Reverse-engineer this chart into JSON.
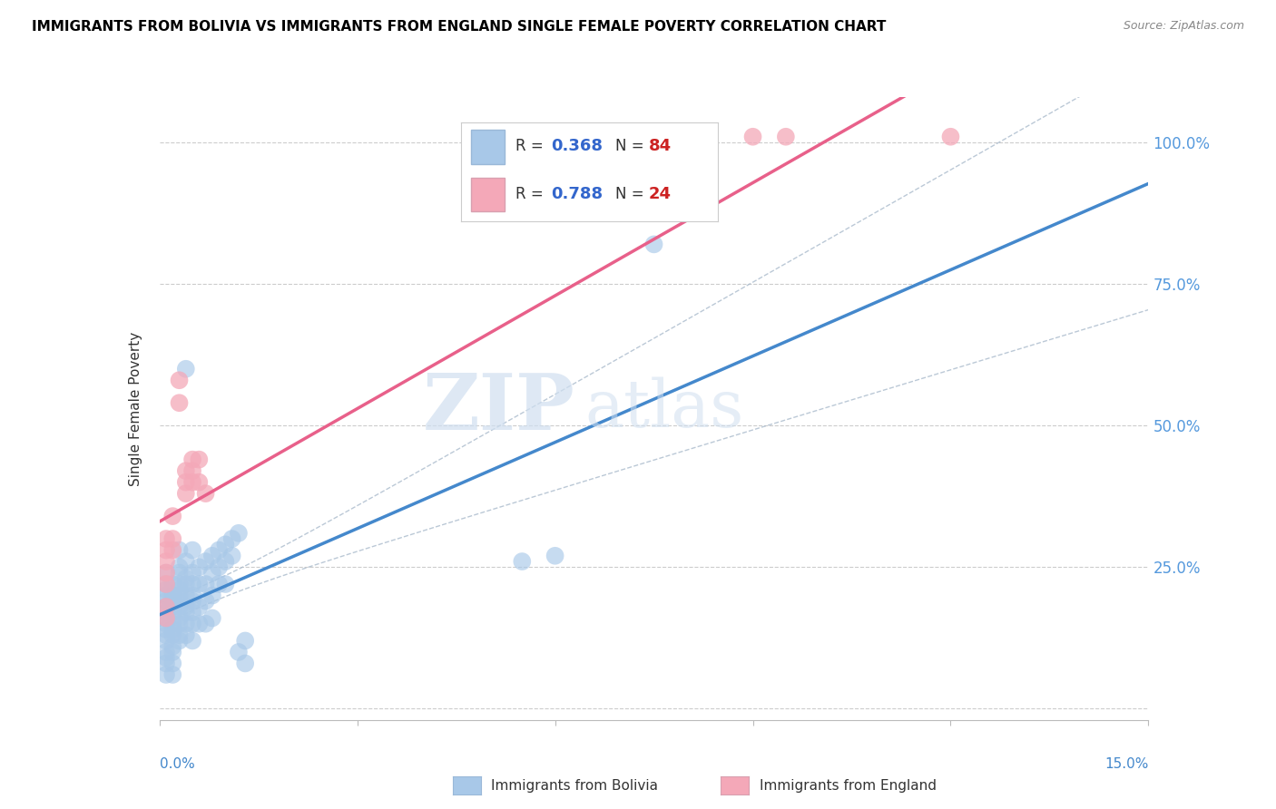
{
  "title": "IMMIGRANTS FROM BOLIVIA VS IMMIGRANTS FROM ENGLAND SINGLE FEMALE POVERTY CORRELATION CHART",
  "source": "Source: ZipAtlas.com",
  "ylabel": "Single Female Poverty",
  "yticks": [
    0.0,
    0.25,
    0.5,
    0.75,
    1.0
  ],
  "ytick_labels": [
    "",
    "25.0%",
    "50.0%",
    "75.0%",
    "100.0%"
  ],
  "xlim": [
    0.0,
    0.15
  ],
  "ylim": [
    -0.02,
    1.08
  ],
  "bolivia_color": "#a8c8e8",
  "england_color": "#f4a8b8",
  "bolivia_line_color": "#4488cc",
  "england_line_color": "#e8608a",
  "bolivia_R": 0.368,
  "bolivia_N": 84,
  "england_R": 0.788,
  "england_N": 24,
  "legend_R_color": "#3366cc",
  "legend_N_color": "#cc2222",
  "watermark_zip": "ZIP",
  "watermark_atlas": "atlas",
  "bolivia_scatter": [
    [
      0.001,
      0.2
    ],
    [
      0.001,
      0.18
    ],
    [
      0.001,
      0.22
    ],
    [
      0.001,
      0.16
    ],
    [
      0.001,
      0.24
    ],
    [
      0.001,
      0.14
    ],
    [
      0.001,
      0.19
    ],
    [
      0.001,
      0.12
    ],
    [
      0.001,
      0.17
    ],
    [
      0.001,
      0.21
    ],
    [
      0.001,
      0.1
    ],
    [
      0.001,
      0.08
    ],
    [
      0.001,
      0.15
    ],
    [
      0.001,
      0.13
    ],
    [
      0.001,
      0.09
    ],
    [
      0.001,
      0.06
    ],
    [
      0.002,
      0.18
    ],
    [
      0.002,
      0.2
    ],
    [
      0.002,
      0.15
    ],
    [
      0.002,
      0.22
    ],
    [
      0.002,
      0.13
    ],
    [
      0.002,
      0.17
    ],
    [
      0.002,
      0.11
    ],
    [
      0.002,
      0.08
    ],
    [
      0.002,
      0.19
    ],
    [
      0.002,
      0.14
    ],
    [
      0.002,
      0.1
    ],
    [
      0.002,
      0.06
    ],
    [
      0.003,
      0.22
    ],
    [
      0.003,
      0.25
    ],
    [
      0.003,
      0.19
    ],
    [
      0.003,
      0.16
    ],
    [
      0.003,
      0.13
    ],
    [
      0.003,
      0.28
    ],
    [
      0.003,
      0.21
    ],
    [
      0.003,
      0.18
    ],
    [
      0.003,
      0.24
    ],
    [
      0.003,
      0.2
    ],
    [
      0.003,
      0.15
    ],
    [
      0.003,
      0.12
    ],
    [
      0.004,
      0.26
    ],
    [
      0.004,
      0.22
    ],
    [
      0.004,
      0.18
    ],
    [
      0.004,
      0.15
    ],
    [
      0.004,
      0.2
    ],
    [
      0.004,
      0.23
    ],
    [
      0.004,
      0.17
    ],
    [
      0.004,
      0.13
    ],
    [
      0.005,
      0.28
    ],
    [
      0.005,
      0.24
    ],
    [
      0.005,
      0.2
    ],
    [
      0.005,
      0.17
    ],
    [
      0.005,
      0.22
    ],
    [
      0.005,
      0.15
    ],
    [
      0.005,
      0.12
    ],
    [
      0.005,
      0.19
    ],
    [
      0.006,
      0.25
    ],
    [
      0.006,
      0.22
    ],
    [
      0.006,
      0.18
    ],
    [
      0.006,
      0.15
    ],
    [
      0.007,
      0.26
    ],
    [
      0.007,
      0.22
    ],
    [
      0.007,
      0.19
    ],
    [
      0.007,
      0.15
    ],
    [
      0.008,
      0.27
    ],
    [
      0.008,
      0.24
    ],
    [
      0.008,
      0.2
    ],
    [
      0.008,
      0.16
    ],
    [
      0.009,
      0.28
    ],
    [
      0.009,
      0.25
    ],
    [
      0.009,
      0.22
    ],
    [
      0.01,
      0.29
    ],
    [
      0.01,
      0.26
    ],
    [
      0.01,
      0.22
    ],
    [
      0.011,
      0.3
    ],
    [
      0.011,
      0.27
    ],
    [
      0.012,
      0.31
    ],
    [
      0.012,
      0.1
    ],
    [
      0.013,
      0.12
    ],
    [
      0.013,
      0.08
    ],
    [
      0.055,
      0.26
    ],
    [
      0.06,
      0.27
    ],
    [
      0.075,
      0.82
    ],
    [
      0.004,
      0.6
    ]
  ],
  "england_scatter": [
    [
      0.001,
      0.3
    ],
    [
      0.001,
      0.28
    ],
    [
      0.001,
      0.26
    ],
    [
      0.001,
      0.24
    ],
    [
      0.001,
      0.22
    ],
    [
      0.001,
      0.18
    ],
    [
      0.001,
      0.16
    ],
    [
      0.002,
      0.34
    ],
    [
      0.002,
      0.3
    ],
    [
      0.002,
      0.28
    ],
    [
      0.003,
      0.58
    ],
    [
      0.003,
      0.54
    ],
    [
      0.004,
      0.42
    ],
    [
      0.004,
      0.4
    ],
    [
      0.004,
      0.38
    ],
    [
      0.005,
      0.44
    ],
    [
      0.005,
      0.42
    ],
    [
      0.005,
      0.4
    ],
    [
      0.006,
      0.44
    ],
    [
      0.006,
      0.4
    ],
    [
      0.007,
      0.38
    ],
    [
      0.09,
      1.01
    ],
    [
      0.095,
      1.01
    ],
    [
      0.12,
      1.01
    ]
  ]
}
